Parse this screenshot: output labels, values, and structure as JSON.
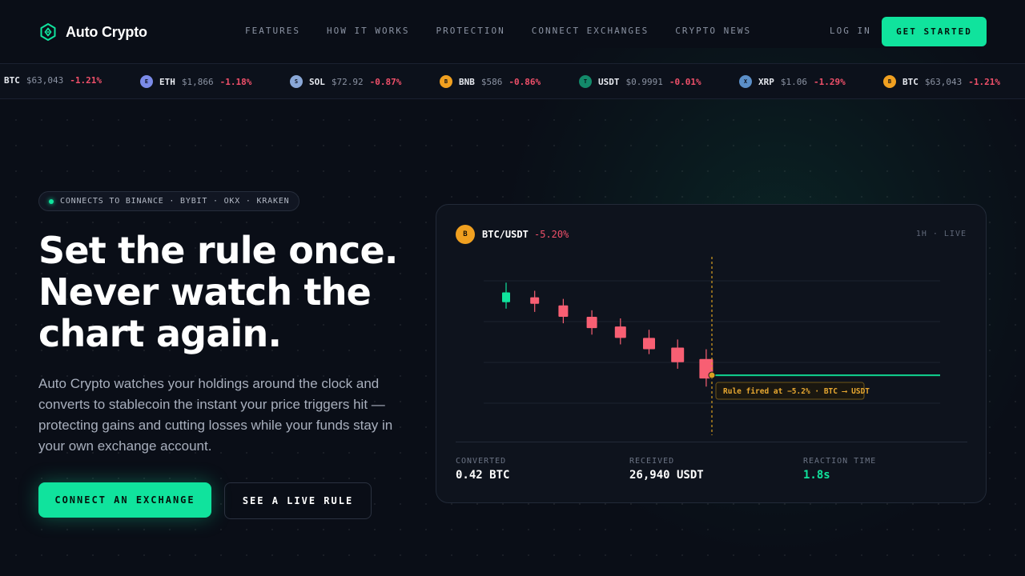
{
  "brand": {
    "name": "Auto Crypto",
    "logo_icon": "hexagon-shield-icon",
    "accent": "#10e39d"
  },
  "nav": {
    "links": [
      "FEATURES",
      "HOW IT WORKS",
      "PROTECTION",
      "CONNECT EXCHANGES",
      "CRYPTO NEWS"
    ],
    "login": "LOG IN",
    "cta": "GET STARTED"
  },
  "ticker": [
    {
      "symbol": "BTC",
      "price": "$63,043",
      "change": "-1.21%",
      "icon_letter": "",
      "color": "#f0a020"
    },
    {
      "symbol": "ETH",
      "price": "$1,866",
      "change": "-1.18%",
      "icon_letter": "E",
      "color": "#7b8be8"
    },
    {
      "symbol": "SOL",
      "price": "$72.92",
      "change": "-0.87%",
      "icon_letter": "S",
      "color": "#8aa8d8"
    },
    {
      "symbol": "BNB",
      "price": "$586",
      "change": "-0.86%",
      "icon_letter": "B",
      "color": "#f0a020"
    },
    {
      "symbol": "USDT",
      "price": "$0.9991",
      "change": "-0.01%",
      "icon_letter": "T",
      "color": "#138a6a"
    },
    {
      "symbol": "XRP",
      "price": "$1.06",
      "change": "-1.29%",
      "icon_letter": "X",
      "color": "#5b8fc8"
    },
    {
      "symbol": "BTC",
      "price": "$63,043",
      "change": "-1.21%",
      "icon_letter": "B",
      "color": "#f0a020"
    }
  ],
  "hero": {
    "badge": "CONNECTS TO BINANCE · BYBIT · OKX · KRAKEN",
    "headline": [
      "Set the rule once.",
      "Never watch the",
      "chart again."
    ],
    "lede": "Auto Crypto watches your holdings around the clock and converts to stablecoin the instant your price triggers hit — protecting gains and cutting losses while your funds stay in your own exchange account.",
    "primary_cta": "CONNECT AN EXCHANGE",
    "secondary_cta": "SEE A LIVE RULE"
  },
  "card": {
    "pair_icon_letter": "B",
    "pair": "BTC/USDT",
    "change": "-5.20%",
    "timeframe": "1H · LIVE",
    "rule_label": "Rule fired at −5.2% · BTC ⟶ USDT",
    "stats": [
      {
        "label": "CONVERTED",
        "value": "0.42 BTC",
        "highlight": false
      },
      {
        "label": "RECEIVED",
        "value": "26,940 USDT",
        "highlight": false
      },
      {
        "label": "REACTION TIME",
        "value": "1.8s",
        "highlight": true
      }
    ]
  },
  "chart_data": {
    "type": "candlestick",
    "candles": [
      {
        "open": 93.5,
        "close": 96.5,
        "high": 99.5,
        "low": 91.5,
        "direction": "up"
      },
      {
        "open": 95.0,
        "close": 93.0,
        "high": 97.0,
        "low": 90.5,
        "direction": "down"
      },
      {
        "open": 92.5,
        "close": 89.0,
        "high": 94.5,
        "low": 87.0,
        "direction": "down"
      },
      {
        "open": 89.0,
        "close": 85.5,
        "high": 91.0,
        "low": 83.5,
        "direction": "down"
      },
      {
        "open": 86.0,
        "close": 82.5,
        "high": 88.5,
        "low": 80.5,
        "direction": "down"
      },
      {
        "open": 82.5,
        "close": 79.0,
        "high": 85.0,
        "low": 77.5,
        "direction": "down"
      },
      {
        "open": 79.5,
        "close": 75.0,
        "high": 82.0,
        "low": 73.0,
        "direction": "down"
      },
      {
        "open": 76.0,
        "close": 70.0,
        "high": 79.0,
        "low": 67.5,
        "direction": "down"
      }
    ],
    "trigger_level": 71.0,
    "ylim": [
      55,
      105
    ],
    "colors": {
      "up": "#10e39d",
      "down": "#f85f73",
      "trigger": "#d9a021",
      "stable": "#10c98a"
    }
  }
}
